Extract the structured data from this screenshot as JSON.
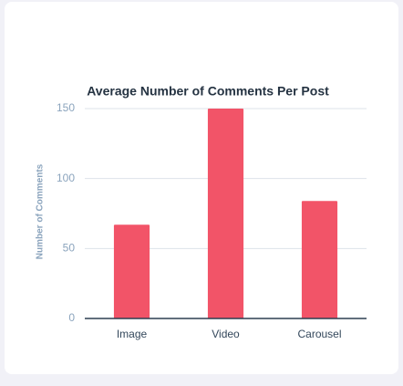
{
  "chart_data": {
    "type": "bar",
    "title": "Average Number of Comments Per Post",
    "y_label": "Number of Comments",
    "categories": [
      "Image",
      "Video",
      "Carousel"
    ],
    "values": [
      67,
      150,
      84
    ],
    "color": "#f25468",
    "ylim": [
      0,
      150
    ],
    "yticks": [
      0,
      50,
      100,
      150
    ],
    "grid": true
  }
}
